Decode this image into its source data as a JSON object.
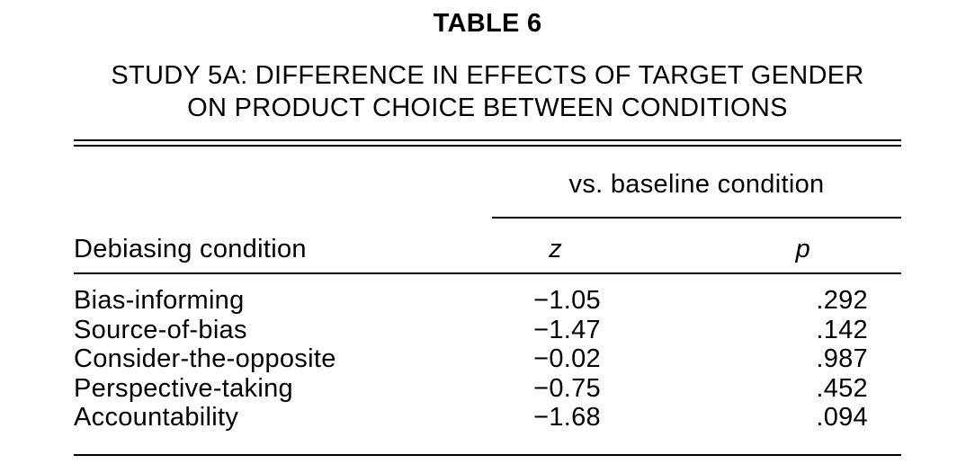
{
  "table": {
    "label": "TABLE 6",
    "title_line1": "STUDY 5A: DIFFERENCE IN EFFECTS OF TARGET GENDER",
    "title_line2": "ON PRODUCT CHOICE BETWEEN CONDITIONS",
    "spanner_header": "vs. baseline condition",
    "columns": {
      "condition": "Debiasing condition",
      "z": "z",
      "p": "p"
    },
    "rows": [
      {
        "condition": "Bias-informing",
        "z": "−1.05",
        "p": ".292"
      },
      {
        "condition": "Source-of-bias",
        "z": "−1.47",
        "p": ".142"
      },
      {
        "condition": "Consider-the-opposite",
        "z": "−0.02",
        "p": ".987"
      },
      {
        "condition": "Perspective-taking",
        "z": "−0.75",
        "p": ".452"
      },
      {
        "condition": "Accountability",
        "z": "−1.68",
        "p": ".094"
      }
    ],
    "colors": {
      "text": "#000000",
      "background": "#ffffff",
      "rule": "#000000"
    }
  }
}
